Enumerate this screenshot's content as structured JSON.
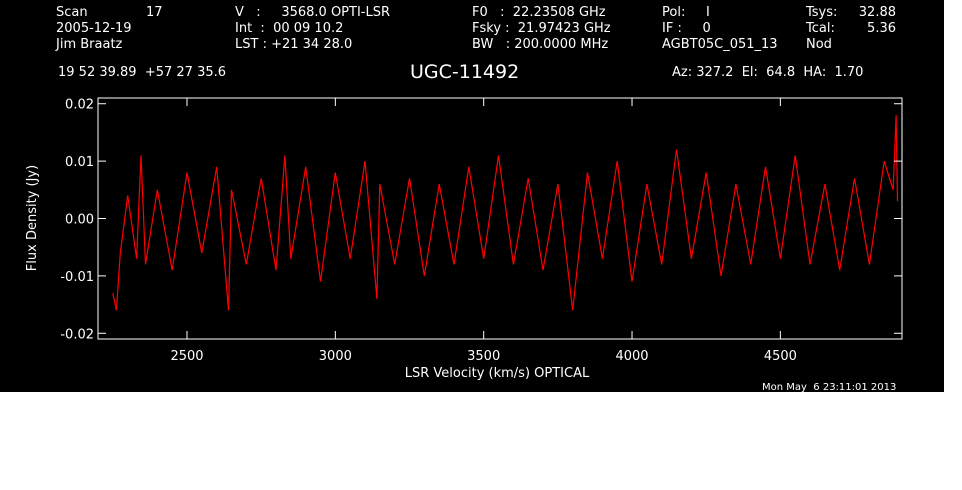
{
  "header": {
    "scan_label": "Scan",
    "scan_value": "17",
    "date": "2005-12-19",
    "observer": "Jim Braatz",
    "velocity": "V   :     3568.0 OPTI-LSR",
    "integration": "Int  :  00 09 10.2",
    "lst": "LST : +21 34 28.0",
    "f0": "F0   :  22.23508 GHz",
    "fsky": "Fsky :  21.97423 GHz",
    "bw": "BW   : 200.0000 MHz",
    "pol": "Pol:     I",
    "if": "IF :     0",
    "project": "AGBT05C_051_13",
    "tsys_label": "Tsys:",
    "tsys_value": "32.88",
    "tcal_label": "Tcal:",
    "tcal_value": "5.36",
    "mode": "Nod",
    "coords": "19 52 39.89  +57 27 35.6",
    "source": "UGC-11492",
    "azelha": "Az: 327.2  El:  64.8  HA:  1.70"
  },
  "timestamp": "Mon May  6 23:11:01 2013",
  "colors": {
    "background": "#000000",
    "axes": "#ffffff",
    "trace": "#ff0000"
  },
  "chart_data": {
    "type": "line",
    "title": "UGC-11492",
    "xlabel": "LSR Velocity (km/s) OPTICAL",
    "ylabel": "Flux Density (Jy)",
    "xlim": [
      2200,
      4910
    ],
    "ylim": [
      -0.021,
      0.021
    ],
    "xticks": [
      2500,
      3000,
      3500,
      4000,
      4500
    ],
    "xtick_labels": [
      "2500",
      "3000",
      "3500",
      "4000",
      "4500"
    ],
    "yticks": [
      -0.02,
      -0.01,
      0.0,
      0.01,
      0.02
    ],
    "ytick_labels": [
      "-0.02",
      "-0.01",
      "0.00",
      "0.01",
      "0.02"
    ],
    "grid": false,
    "series": [
      {
        "x": [
          2250,
          2262,
          2275,
          2300,
          2330,
          2345,
          2360,
          2400,
          2450,
          2500,
          2550,
          2600,
          2640,
          2650,
          2700,
          2750,
          2800,
          2830,
          2850,
          2900,
          2950,
          3000,
          3050,
          3100,
          3140,
          3150,
          3200,
          3250,
          3300,
          3350,
          3400,
          3450,
          3500,
          3550,
          3600,
          3650,
          3700,
          3750,
          3800,
          3850,
          3900,
          3950,
          4000,
          4050,
          4100,
          4150,
          4200,
          4250,
          4300,
          4350,
          4400,
          4450,
          4500,
          4550,
          4600,
          4650,
          4700,
          4750,
          4800,
          4850,
          4880,
          4890,
          4895
        ],
        "y": [
          -0.013,
          -0.016,
          -0.006,
          0.004,
          -0.007,
          0.011,
          -0.008,
          0.005,
          -0.009,
          0.008,
          -0.006,
          0.009,
          -0.016,
          0.005,
          -0.008,
          0.007,
          -0.009,
          0.011,
          -0.007,
          0.009,
          -0.011,
          0.008,
          -0.007,
          0.01,
          -0.014,
          0.006,
          -0.008,
          0.007,
          -0.01,
          0.006,
          -0.008,
          0.009,
          -0.007,
          0.011,
          -0.008,
          0.007,
          -0.009,
          0.006,
          -0.016,
          0.008,
          -0.007,
          0.01,
          -0.011,
          0.006,
          -0.008,
          0.012,
          -0.007,
          0.008,
          -0.01,
          0.006,
          -0.008,
          0.009,
          -0.007,
          0.011,
          -0.008,
          0.006,
          -0.009,
          0.007,
          -0.008,
          0.01,
          0.005,
          0.018,
          0.003
        ]
      }
    ]
  }
}
